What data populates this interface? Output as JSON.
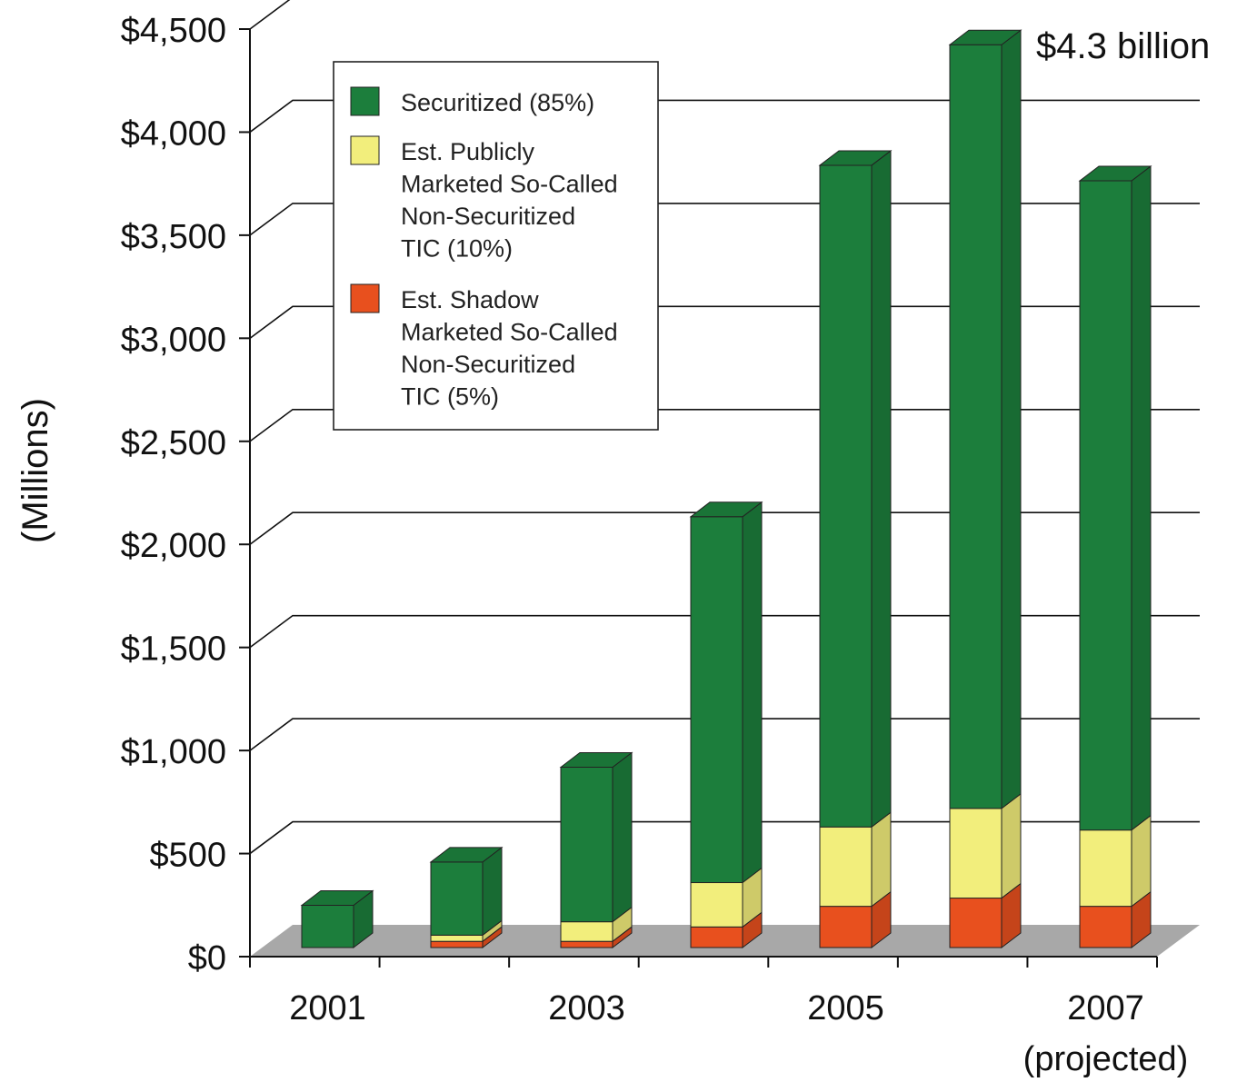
{
  "chart_data": {
    "type": "bar",
    "stacked": true,
    "three_d": true,
    "ylabel": "(Millions)",
    "xlabel": "",
    "ylim": [
      0,
      4500
    ],
    "yticks": [
      0,
      500,
      1000,
      1500,
      2000,
      2500,
      3000,
      3500,
      4000,
      4500
    ],
    "ytick_labels": [
      "$0",
      "$500",
      "$1,000",
      "$1,500",
      "$2,000",
      "$2,500",
      "$3,000",
      "$3,500",
      "$4,000",
      "$4,500"
    ],
    "categories": [
      "2001",
      "2002",
      "2003",
      "2004",
      "2005",
      "2006",
      "2007"
    ],
    "xtick_labels": [
      {
        "text": "2001",
        "category": "2001"
      },
      {
        "text": "2003",
        "category": "2003"
      },
      {
        "text": "2005",
        "category": "2005"
      },
      {
        "text": "2007",
        "category": "2007"
      }
    ],
    "xtick_sublabel": {
      "text": "(projected)",
      "category": "2007"
    },
    "series": [
      {
        "name": "Est. Shadow Marketed So-Called Non-Securitized TIC (5%)",
        "legend_lines": [
          "Est. Shadow",
          "Marketed So-Called",
          "Non-Securitized",
          "TIC (5%)"
        ],
        "color": "#e8501e",
        "values": [
          0,
          30,
          30,
          100,
          200,
          240,
          200
        ]
      },
      {
        "name": "Est. Publicly Marketed So-Called Non-Securitized TIC (10%)",
        "legend_lines": [
          "Est. Publicly",
          "Marketed So-Called",
          "Non-Securitized",
          "TIC (10%)"
        ],
        "color": "#f2ee7c",
        "values": [
          0,
          30,
          95,
          215,
          385,
          435,
          370
        ]
      },
      {
        "name": "Securitized (85%)",
        "legend_lines": [
          "Securitized (85%)"
        ],
        "color": "#1c7e3c",
        "values": [
          205,
          355,
          750,
          1775,
          3210,
          3705,
          3150
        ]
      }
    ],
    "legend_order": [
      2,
      1,
      0
    ],
    "annotations": [
      {
        "text": "$4.3 billion",
        "category": "2006"
      }
    ],
    "grid": true,
    "legend_placement": "upper-left"
  }
}
